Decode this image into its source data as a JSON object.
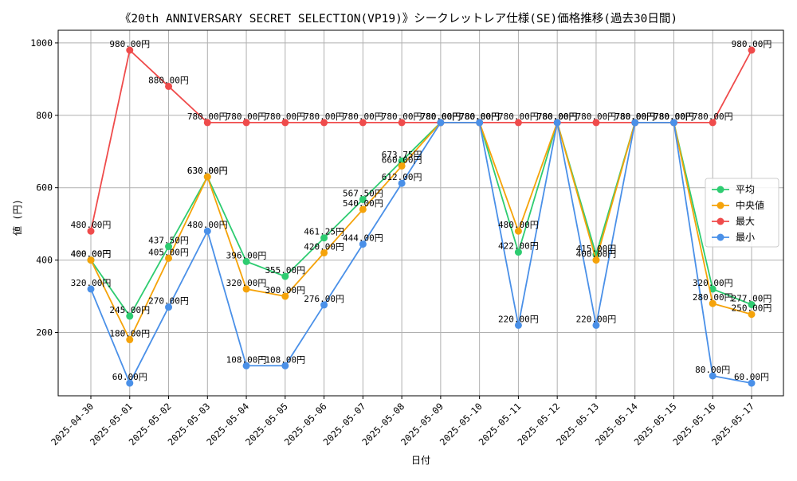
{
  "chart_data": {
    "type": "line",
    "title": "《20th ANNIVERSARY SECRET SELECTION(VP19)》シークレットレア仕様(SE)価格推移(過去30日間)",
    "xlabel": "日付",
    "ylabel": "値 (円)",
    "ylim": [
      25,
      1035
    ],
    "yticks": [
      200,
      400,
      600,
      800,
      1000
    ],
    "grid": true,
    "legend_position": "center-right",
    "label_suffix": "円",
    "categories": [
      "2025-04-30",
      "2025-05-01",
      "2025-05-02",
      "2025-05-03",
      "2025-05-04",
      "2025-05-05",
      "2025-05-06",
      "2025-05-07",
      "2025-05-08",
      "2025-05-09",
      "2025-05-10",
      "2025-05-11",
      "2025-05-12",
      "2025-05-13",
      "2025-05-14",
      "2025-05-15",
      "2025-05-16",
      "2025-05-17"
    ],
    "series": [
      {
        "name": "平均",
        "color": "#2ecc71",
        "values": [
          400,
          245,
          437.5,
          630,
          396,
          355,
          461.25,
          567.5,
          673.75,
          780,
          780,
          422,
          780,
          415,
          780,
          780,
          320,
          277
        ]
      },
      {
        "name": "中央値",
        "color": "#f5a30a",
        "values": [
          400,
          180,
          405,
          630,
          320,
          300,
          420,
          540,
          660,
          780,
          780,
          480,
          780,
          400,
          780,
          780,
          280,
          250
        ]
      },
      {
        "name": "最大",
        "color": "#ef4b4b",
        "values": [
          480,
          980,
          880,
          780,
          780,
          780,
          780,
          780,
          780,
          780,
          780,
          780,
          780,
          780,
          780,
          780,
          780,
          980
        ]
      },
      {
        "name": "最小",
        "color": "#4a90e8",
        "values": [
          320,
          60,
          270,
          480,
          108,
          108,
          276,
          444,
          612,
          780,
          780,
          220,
          780,
          220,
          780,
          780,
          80,
          60
        ]
      }
    ]
  }
}
